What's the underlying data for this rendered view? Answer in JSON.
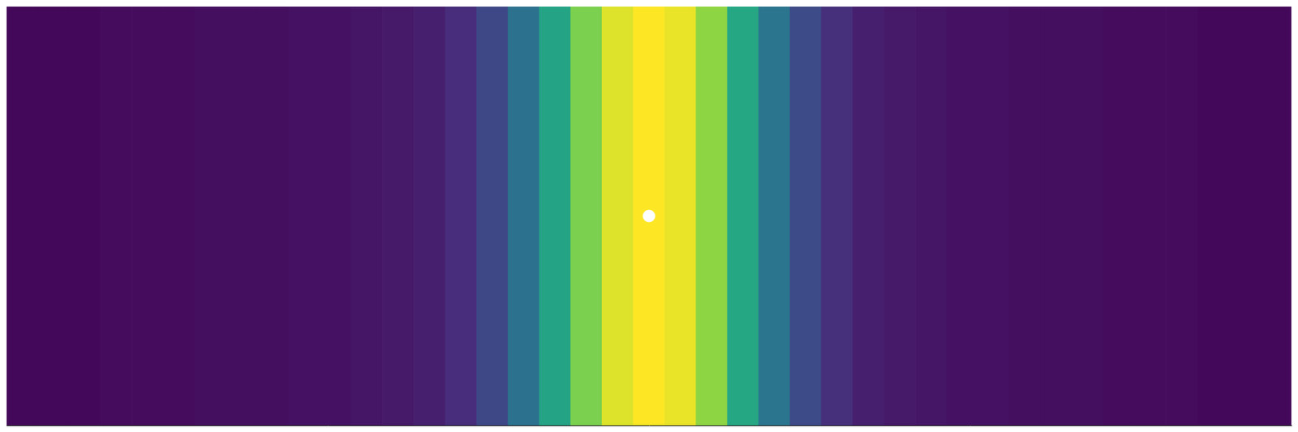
{
  "chart_data": {
    "type": "heatmap",
    "x": [
      0,
      0.025,
      0.05,
      0.075,
      0.1,
      0.125,
      0.15,
      0.175,
      0.2,
      0.225,
      0.25,
      0.275,
      0.3,
      0.325,
      0.35,
      0.375,
      0.4,
      0.425,
      0.45,
      0.475,
      0.5,
      0.525,
      0.55,
      0.575,
      0.6,
      0.625,
      0.65,
      0.675,
      0.7,
      0.725,
      0.75,
      0.775,
      0.8,
      0.825,
      0.85,
      0.875,
      0.9,
      0.925,
      0.95,
      0.975,
      1
    ],
    "values": [
      0.02,
      0.02,
      0.02,
      0.03,
      0.03,
      0.03,
      0.04,
      0.04,
      0.04,
      0.05,
      0.05,
      0.06,
      0.07,
      0.09,
      0.13,
      0.22,
      0.38,
      0.58,
      0.8,
      0.95,
      1.0,
      0.97,
      0.83,
      0.6,
      0.39,
      0.23,
      0.14,
      0.09,
      0.07,
      0.06,
      0.05,
      0.05,
      0.04,
      0.04,
      0.04,
      0.03,
      0.03,
      0.03,
      0.02,
      0.02,
      0.02
    ],
    "color_range": [
      0,
      1
    ],
    "ylim": [
      0,
      1
    ],
    "grid": false,
    "tick_labels": false,
    "source": {
      "x": 0.5,
      "y": 0.5,
      "color": "#ffffff"
    }
  }
}
